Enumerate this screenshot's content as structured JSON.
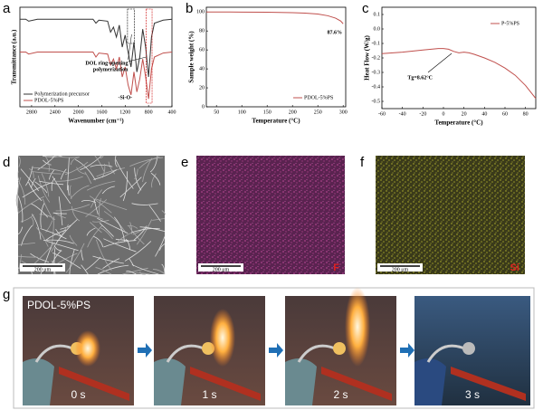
{
  "panel_labels": [
    "a",
    "b",
    "c",
    "d",
    "e",
    "f",
    "g"
  ],
  "chart_data": [
    {
      "type": "line",
      "xlabel": "Wavenumber (cm⁻¹)",
      "ylabel": "Transmittance (a.u.)",
      "x": [
        3000,
        2900,
        2850,
        2700,
        2500,
        2300,
        2100,
        1900,
        1750,
        1700,
        1650,
        1500,
        1450,
        1400,
        1350,
        1300,
        1250,
        1200,
        1150,
        1100,
        1050,
        1000,
        950,
        900,
        850,
        800,
        750,
        700,
        550,
        400
      ],
      "series": [
        {
          "name": "Polymerization precursor",
          "color": "#333333",
          "values": [
            88,
            88,
            86,
            88,
            88,
            88,
            88,
            88,
            88,
            84,
            87,
            86,
            75,
            80,
            70,
            82,
            60,
            72,
            55,
            40,
            65,
            35,
            50,
            78,
            60,
            30,
            70,
            84,
            87,
            88
          ]
        },
        {
          "name": "PDOL-5%PS",
          "color": "#c0504d",
          "values": [
            55,
            55,
            53,
            55,
            55,
            55,
            55,
            55,
            55,
            50,
            54,
            53,
            42,
            48,
            38,
            50,
            30,
            40,
            22,
            12,
            35,
            15,
            28,
            48,
            30,
            8,
            38,
            50,
            54,
            55
          ]
        }
      ],
      "xlim": [
        3000,
        400
      ],
      "xticks": [
        2800,
        2400,
        2000,
        1600,
        1200,
        800,
        400
      ],
      "ylim": [
        0,
        100
      ],
      "annotations": [
        "DOL ring-opening",
        "polymerization",
        "-Si-O-"
      ],
      "legend": "lower left"
    },
    {
      "type": "line",
      "xlabel": "Temperature (°C)",
      "ylabel": "Sample weight (%)",
      "x": [
        30,
        50,
        100,
        150,
        200,
        225,
        250,
        270,
        285,
        295,
        300
      ],
      "series": [
        {
          "name": "PDOL-5%PS",
          "color": "#c0504d",
          "values": [
            100,
            100,
            99.9,
            99.7,
            99.3,
            98.8,
            97.8,
            96,
            93.5,
            90.5,
            87.6
          ]
        }
      ],
      "xlim": [
        30,
        305
      ],
      "xticks": [
        50,
        100,
        150,
        200,
        250,
        300
      ],
      "ylim": [
        0,
        105
      ],
      "yticks": [
        0,
        20,
        40,
        60,
        80,
        100
      ],
      "annotations": [
        "87.6%"
      ],
      "legend": "lower right"
    },
    {
      "type": "line",
      "xlabel": "Temperature (°C)",
      "ylabel": "Heat Flow (W/g)",
      "x": [
        -60,
        -40,
        -20,
        -5,
        0,
        5,
        10,
        15,
        20,
        25,
        30,
        40,
        50,
        60,
        70,
        80,
        90
      ],
      "series": [
        {
          "name": "P-5%PS",
          "color": "#c0504d",
          "values": [
            -0.17,
            -0.16,
            -0.145,
            -0.135,
            -0.135,
            -0.14,
            -0.155,
            -0.165,
            -0.16,
            -0.165,
            -0.175,
            -0.2,
            -0.23,
            -0.27,
            -0.32,
            -0.39,
            -0.48
          ]
        }
      ],
      "xlim": [
        -60,
        90
      ],
      "xticks": [
        -60,
        -40,
        -20,
        0,
        20,
        40,
        60,
        80
      ],
      "ylim": [
        -0.55,
        0.15
      ],
      "yticks": [
        0.1,
        {
          "value": 0,
          "label": "0.0"
        },
        -0.1,
        -0.2,
        -0.3,
        -0.4,
        -0.5
      ],
      "annotations": [
        "Tg=8.62°C"
      ],
      "legend": "upper right"
    }
  ],
  "images": {
    "scale_bar": "200 μm",
    "elements": [
      "F",
      "Si"
    ]
  },
  "flame": {
    "sample": "PDOL-5%PS",
    "times": [
      "0 s",
      "1 s",
      "2 s",
      "3 s"
    ]
  }
}
